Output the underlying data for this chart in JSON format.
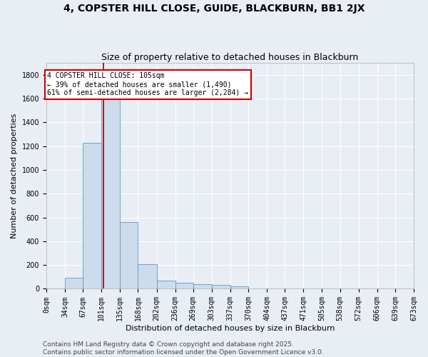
{
  "title": "4, COPSTER HILL CLOSE, GUIDE, BLACKBURN, BB1 2JX",
  "subtitle": "Size of property relative to detached houses in Blackburn",
  "xlabel": "Distribution of detached houses by size in Blackburn",
  "ylabel": "Number of detached properties",
  "bar_color": "#ccdcec",
  "bar_edge_color": "#6699bb",
  "background_color": "#e8eef4",
  "grid_color": "#ffffff",
  "bin_edges": [
    0,
    34,
    67,
    101,
    135,
    168,
    202,
    236,
    269,
    303,
    337,
    370,
    404,
    437,
    471,
    505,
    538,
    572,
    606,
    639,
    673
  ],
  "bin_labels": [
    "0sqm",
    "34sqm",
    "67sqm",
    "101sqm",
    "135sqm",
    "168sqm",
    "202sqm",
    "236sqm",
    "269sqm",
    "303sqm",
    "337sqm",
    "370sqm",
    "404sqm",
    "437sqm",
    "471sqm",
    "505sqm",
    "538sqm",
    "572sqm",
    "606sqm",
    "639sqm",
    "673sqm"
  ],
  "bar_heights": [
    0,
    90,
    1230,
    1620,
    560,
    210,
    70,
    50,
    40,
    30,
    20,
    5,
    3,
    1,
    0,
    0,
    0,
    0,
    0,
    0
  ],
  "ylim": [
    0,
    1900
  ],
  "yticks": [
    0,
    200,
    400,
    600,
    800,
    1000,
    1200,
    1400,
    1600,
    1800
  ],
  "property_size": 105,
  "property_line_color": "#990000",
  "annotation_text": "4 COPSTER HILL CLOSE: 105sqm\n← 39% of detached houses are smaller (1,490)\n61% of semi-detached houses are larger (2,284) →",
  "annotation_box_color": "#ffffff",
  "annotation_box_edge_color": "#cc0000",
  "footer_line1": "Contains HM Land Registry data © Crown copyright and database right 2025.",
  "footer_line2": "Contains public sector information licensed under the Open Government Licence v3.0.",
  "title_fontsize": 10,
  "subtitle_fontsize": 9,
  "axis_label_fontsize": 8,
  "tick_fontsize": 7,
  "annotation_fontsize": 7,
  "footer_fontsize": 6.5
}
